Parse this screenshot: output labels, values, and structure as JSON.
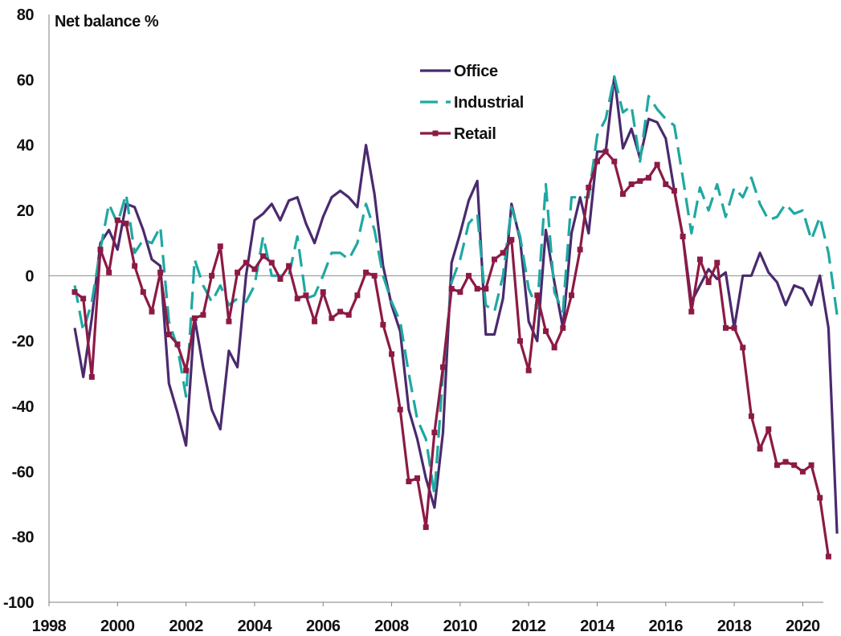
{
  "chart_data": {
    "type": "line",
    "title": "",
    "ylabel": "Net balance %",
    "xlabel": "",
    "xlim": [
      1998,
      2020.6
    ],
    "ylim": [
      -100,
      80
    ],
    "yticks": [
      80,
      60,
      40,
      20,
      0,
      -20,
      -40,
      -60,
      -80,
      -100
    ],
    "xticks": [
      1998,
      2000,
      2002,
      2004,
      2006,
      2008,
      2010,
      2012,
      2014,
      2016,
      2018,
      2020
    ],
    "grid": false,
    "legend_position": "top-center",
    "series": [
      {
        "name": "Office",
        "color": "#4a2a6e",
        "style": "solid",
        "marker": "none",
        "points": [
          [
            1998.75,
            -16
          ],
          [
            1999.0,
            -31
          ],
          [
            1999.25,
            -13
          ],
          [
            1999.5,
            10
          ],
          [
            1999.75,
            14
          ],
          [
            2000.0,
            8
          ],
          [
            2000.25,
            22
          ],
          [
            2000.5,
            21
          ],
          [
            2000.75,
            14
          ],
          [
            2001.0,
            5
          ],
          [
            2001.25,
            3
          ],
          [
            2001.5,
            -33
          ],
          [
            2001.75,
            -42
          ],
          [
            2002.0,
            -52
          ],
          [
            2002.25,
            -13
          ],
          [
            2002.5,
            -28
          ],
          [
            2002.75,
            -41
          ],
          [
            2003.0,
            -47
          ],
          [
            2003.25,
            -23
          ],
          [
            2003.5,
            -28
          ],
          [
            2003.75,
            0
          ],
          [
            2004.0,
            17
          ],
          [
            2004.25,
            19
          ],
          [
            2004.5,
            22
          ],
          [
            2004.75,
            17
          ],
          [
            2005.0,
            23
          ],
          [
            2005.25,
            24
          ],
          [
            2005.5,
            16
          ],
          [
            2005.75,
            10
          ],
          [
            2006.0,
            18
          ],
          [
            2006.25,
            24
          ],
          [
            2006.5,
            26
          ],
          [
            2006.75,
            24
          ],
          [
            2007.0,
            21
          ],
          [
            2007.25,
            40
          ],
          [
            2007.5,
            25
          ],
          [
            2007.75,
            3
          ],
          [
            2008.0,
            -9
          ],
          [
            2008.25,
            -17
          ],
          [
            2008.5,
            -41
          ],
          [
            2008.75,
            -50
          ],
          [
            2009.0,
            -62
          ],
          [
            2009.25,
            -71
          ],
          [
            2009.5,
            -48
          ],
          [
            2009.75,
            4
          ],
          [
            2010.0,
            13
          ],
          [
            2010.25,
            23
          ],
          [
            2010.5,
            29
          ],
          [
            2010.75,
            -18
          ],
          [
            2011.0,
            -18
          ],
          [
            2011.25,
            -7
          ],
          [
            2011.5,
            22
          ],
          [
            2011.75,
            11
          ],
          [
            2012.0,
            -14
          ],
          [
            2012.25,
            -20
          ],
          [
            2012.5,
            14
          ],
          [
            2012.75,
            -2
          ],
          [
            2013.0,
            -16
          ],
          [
            2013.25,
            13
          ],
          [
            2013.5,
            24
          ],
          [
            2013.75,
            13
          ],
          [
            2014.0,
            38
          ],
          [
            2014.25,
            38
          ],
          [
            2014.5,
            61
          ],
          [
            2014.75,
            39
          ],
          [
            2015.0,
            45
          ],
          [
            2015.25,
            36
          ],
          [
            2015.5,
            48
          ],
          [
            2015.75,
            47
          ],
          [
            2016.0,
            42
          ],
          [
            2016.25,
            26
          ],
          [
            2016.5,
            12
          ],
          [
            2016.75,
            -8
          ],
          [
            2017.0,
            -3
          ],
          [
            2017.25,
            2
          ],
          [
            2017.5,
            -1
          ],
          [
            2017.75,
            1
          ],
          [
            2018.0,
            -16
          ],
          [
            2018.25,
            0
          ],
          [
            2018.5,
            0
          ],
          [
            2018.75,
            7
          ],
          [
            2019.0,
            1
          ],
          [
            2019.25,
            -2
          ],
          [
            2019.5,
            -9
          ],
          [
            2019.75,
            -3
          ],
          [
            2020.0,
            -4
          ],
          [
            2020.25,
            -9
          ],
          [
            2020.5,
            0
          ],
          [
            2020.75,
            -16
          ],
          [
            2021.0,
            -79
          ]
        ]
      },
      {
        "name": "Industrial",
        "color": "#1fa8a2",
        "style": "dashed",
        "marker": "none",
        "points": [
          [
            1998.75,
            -3
          ],
          [
            1999.0,
            -17
          ],
          [
            1999.25,
            -8
          ],
          [
            1999.5,
            8
          ],
          [
            1999.75,
            22
          ],
          [
            2000.0,
            16
          ],
          [
            2000.25,
            25
          ],
          [
            2000.5,
            7
          ],
          [
            2000.75,
            11
          ],
          [
            2001.0,
            10
          ],
          [
            2001.25,
            15
          ],
          [
            2001.5,
            -14
          ],
          [
            2001.75,
            -22
          ],
          [
            2002.0,
            -37
          ],
          [
            2002.25,
            5
          ],
          [
            2002.5,
            -3
          ],
          [
            2002.75,
            -8
          ],
          [
            2003.0,
            -3
          ],
          [
            2003.25,
            -9
          ],
          [
            2003.5,
            -7
          ],
          [
            2003.75,
            -8
          ],
          [
            2004.0,
            -3
          ],
          [
            2004.25,
            12
          ],
          [
            2004.5,
            0
          ],
          [
            2004.75,
            0
          ],
          [
            2005.0,
            0
          ],
          [
            2005.25,
            12
          ],
          [
            2005.5,
            -7
          ],
          [
            2005.75,
            -6
          ],
          [
            2006.0,
            0
          ],
          [
            2006.25,
            7
          ],
          [
            2006.5,
            7
          ],
          [
            2006.75,
            5
          ],
          [
            2007.0,
            10
          ],
          [
            2007.25,
            22
          ],
          [
            2007.5,
            14
          ],
          [
            2007.75,
            0
          ],
          [
            2008.0,
            -8
          ],
          [
            2008.25,
            -14
          ],
          [
            2008.5,
            -30
          ],
          [
            2008.75,
            -44
          ],
          [
            2009.0,
            -50
          ],
          [
            2009.25,
            -67
          ],
          [
            2009.5,
            -30
          ],
          [
            2009.75,
            -2
          ],
          [
            2010.0,
            5
          ],
          [
            2010.25,
            16
          ],
          [
            2010.5,
            19
          ],
          [
            2010.75,
            -9
          ],
          [
            2011.0,
            -11
          ],
          [
            2011.25,
            0
          ],
          [
            2011.5,
            21
          ],
          [
            2011.75,
            12
          ],
          [
            2012.0,
            -4
          ],
          [
            2012.25,
            -10
          ],
          [
            2012.5,
            28
          ],
          [
            2012.75,
            -5
          ],
          [
            2013.0,
            -11
          ],
          [
            2013.25,
            24
          ],
          [
            2013.5,
            24
          ],
          [
            2013.75,
            24
          ],
          [
            2014.0,
            43
          ],
          [
            2014.25,
            48
          ],
          [
            2014.5,
            61
          ],
          [
            2014.75,
            50
          ],
          [
            2015.0,
            52
          ],
          [
            2015.25,
            35
          ],
          [
            2015.5,
            55
          ],
          [
            2015.75,
            51
          ],
          [
            2016.0,
            48
          ],
          [
            2016.25,
            46
          ],
          [
            2016.5,
            30
          ],
          [
            2016.75,
            13
          ],
          [
            2017.0,
            27
          ],
          [
            2017.25,
            20
          ],
          [
            2017.5,
            28
          ],
          [
            2017.75,
            18
          ],
          [
            2018.0,
            27
          ],
          [
            2018.25,
            24
          ],
          [
            2018.5,
            30
          ],
          [
            2018.75,
            22
          ],
          [
            2019.0,
            17
          ],
          [
            2019.25,
            18
          ],
          [
            2019.5,
            22
          ],
          [
            2019.75,
            19
          ],
          [
            2020.0,
            20
          ],
          [
            2020.25,
            11
          ],
          [
            2020.5,
            18
          ],
          [
            2020.75,
            7
          ],
          [
            2021.0,
            -12
          ]
        ]
      },
      {
        "name": "Retail",
        "color": "#8c1a45",
        "style": "solid",
        "marker": "square",
        "points": [
          [
            1998.75,
            -5
          ],
          [
            1999.0,
            -7
          ],
          [
            1999.25,
            -31
          ],
          [
            1999.5,
            8
          ],
          [
            1999.75,
            1
          ],
          [
            2000.0,
            17
          ],
          [
            2000.25,
            16
          ],
          [
            2000.5,
            3
          ],
          [
            2000.75,
            -5
          ],
          [
            2001.0,
            -11
          ],
          [
            2001.25,
            1
          ],
          [
            2001.5,
            -18
          ],
          [
            2001.75,
            -21
          ],
          [
            2002.0,
            -29
          ],
          [
            2002.25,
            -13
          ],
          [
            2002.5,
            -12
          ],
          [
            2002.75,
            0
          ],
          [
            2003.0,
            9
          ],
          [
            2003.25,
            -14
          ],
          [
            2003.5,
            1
          ],
          [
            2003.75,
            4
          ],
          [
            2004.0,
            2
          ],
          [
            2004.25,
            6
          ],
          [
            2004.5,
            4
          ],
          [
            2004.75,
            -1
          ],
          [
            2005.0,
            3
          ],
          [
            2005.25,
            -7
          ],
          [
            2005.5,
            -6
          ],
          [
            2005.75,
            -14
          ],
          [
            2006.0,
            -5
          ],
          [
            2006.25,
            -13
          ],
          [
            2006.5,
            -11
          ],
          [
            2006.75,
            -12
          ],
          [
            2007.0,
            -6
          ],
          [
            2007.25,
            1
          ],
          [
            2007.5,
            0
          ],
          [
            2007.75,
            -15
          ],
          [
            2008.0,
            -24
          ],
          [
            2008.25,
            -41
          ],
          [
            2008.5,
            -63
          ],
          [
            2008.75,
            -62
          ],
          [
            2009.0,
            -77
          ],
          [
            2009.25,
            -48
          ],
          [
            2009.5,
            -28
          ],
          [
            2009.75,
            -4
          ],
          [
            2010.0,
            -5
          ],
          [
            2010.25,
            0
          ],
          [
            2010.5,
            -4
          ],
          [
            2010.75,
            -4
          ],
          [
            2011.0,
            5
          ],
          [
            2011.25,
            7
          ],
          [
            2011.5,
            11
          ],
          [
            2011.75,
            -20
          ],
          [
            2012.0,
            -29
          ],
          [
            2012.25,
            -6
          ],
          [
            2012.5,
            -17
          ],
          [
            2012.75,
            -22
          ],
          [
            2013.0,
            -16
          ],
          [
            2013.25,
            -6
          ],
          [
            2013.5,
            8
          ],
          [
            2013.75,
            27
          ],
          [
            2014.0,
            35
          ],
          [
            2014.25,
            38
          ],
          [
            2014.5,
            35
          ],
          [
            2014.75,
            25
          ],
          [
            2015.0,
            28
          ],
          [
            2015.25,
            29
          ],
          [
            2015.5,
            30
          ],
          [
            2015.75,
            34
          ],
          [
            2016.0,
            28
          ],
          [
            2016.25,
            26
          ],
          [
            2016.5,
            12
          ],
          [
            2016.75,
            -11
          ],
          [
            2017.0,
            5
          ],
          [
            2017.25,
            -2
          ],
          [
            2017.5,
            4
          ],
          [
            2017.75,
            -16
          ],
          [
            2018.0,
            -16
          ],
          [
            2018.25,
            -22
          ],
          [
            2018.5,
            -43
          ],
          [
            2018.75,
            -53
          ],
          [
            2019.0,
            -47
          ],
          [
            2019.25,
            -58
          ],
          [
            2019.5,
            -57
          ],
          [
            2019.75,
            -58
          ],
          [
            2020.0,
            -60
          ],
          [
            2020.25,
            -58
          ],
          [
            2020.5,
            -68
          ],
          [
            2020.75,
            -86
          ]
        ]
      }
    ]
  }
}
